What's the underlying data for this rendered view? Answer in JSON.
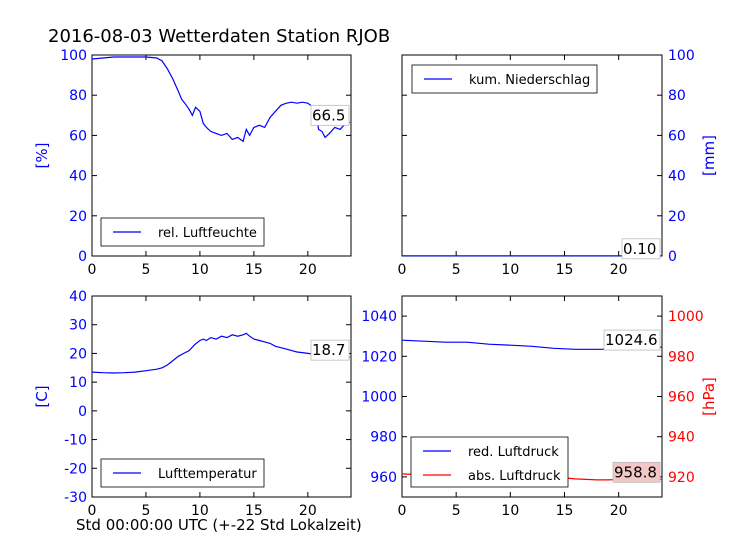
{
  "title": "2016-08-03 Wetterdaten Station RJOB",
  "xlabel": "Std 00:00:00 UTC (+-22 Std Lokalzeit)",
  "colors": {
    "blue": "#0000ff",
    "red": "#ff0000"
  },
  "chart_data": [
    {
      "id": "humidity",
      "type": "line",
      "ylabel": "[%]",
      "xlim": [
        0,
        24
      ],
      "ylim": [
        0,
        100
      ],
      "xticks": [
        0,
        5,
        10,
        15,
        20
      ],
      "yticks": [
        0,
        20,
        40,
        60,
        80,
        100
      ],
      "series": [
        {
          "name": "rel. Luftfeuchte",
          "color": "#0000ff",
          "x": [
            0,
            1,
            2,
            3,
            4,
            5,
            6,
            6.5,
            7,
            7.5,
            8,
            8.3,
            8.6,
            9,
            9.3,
            9.6,
            10,
            10.3,
            10.6,
            11,
            11.5,
            12,
            12.5,
            13,
            13.5,
            14,
            14.3,
            14.6,
            15,
            15.5,
            16,
            16.5,
            17,
            17.5,
            18,
            18.5,
            19,
            19.5,
            20,
            20.5,
            20.8,
            21,
            21.3,
            21.6,
            22,
            22.5,
            23,
            23.5,
            23.9
          ],
          "y": [
            98,
            98.5,
            99,
            99,
            99,
            99,
            98.5,
            97,
            93,
            88,
            82,
            78,
            76,
            73,
            70,
            74,
            72,
            66,
            64,
            62,
            61,
            60,
            61,
            58,
            59,
            57,
            63,
            60,
            64,
            65,
            64,
            69,
            72,
            75,
            76,
            76.5,
            76,
            76.5,
            76,
            74,
            70,
            63,
            62,
            59,
            61,
            64,
            63,
            66,
            66.5
          ]
        }
      ],
      "end_label": "66.5",
      "legend_loc": "lower-left",
      "legend": [
        "rel. Luftfeuchte"
      ]
    },
    {
      "id": "precip",
      "type": "line",
      "ylabel": "[mm]",
      "xlim": [
        0,
        24
      ],
      "ylim": [
        0,
        100
      ],
      "xticks": [
        0,
        5,
        10,
        15,
        20
      ],
      "yticks": [
        0,
        20,
        40,
        60,
        80,
        100
      ],
      "series": [
        {
          "name": "kum. Niederschlag",
          "color": "#0000ff",
          "x": [
            0,
            24
          ],
          "y": [
            0.1,
            0.1
          ]
        }
      ],
      "end_label": "0.10",
      "legend_loc": "top-left",
      "legend": [
        "kum. Niederschlag"
      ]
    },
    {
      "id": "temperature",
      "type": "line",
      "ylabel": "[C]",
      "xlim": [
        0,
        24
      ],
      "ylim": [
        -30,
        40
      ],
      "xticks": [
        0,
        5,
        10,
        15,
        20
      ],
      "yticks": [
        -30,
        -20,
        -10,
        0,
        10,
        20,
        30,
        40
      ],
      "series": [
        {
          "name": "Lufttemperatur",
          "color": "#0000ff",
          "x": [
            0,
            1,
            2,
            3,
            4,
            5,
            6,
            6.5,
            7,
            7.5,
            8,
            8.5,
            9,
            9.5,
            10,
            10.3,
            10.6,
            11,
            11.5,
            12,
            12.5,
            13,
            13.5,
            14,
            14.3,
            14.6,
            15,
            15.5,
            16,
            16.5,
            17,
            17.5,
            18,
            18.5,
            19,
            19.5,
            20,
            21,
            22,
            23,
            23.9
          ],
          "y": [
            13.5,
            13.3,
            13.2,
            13.3,
            13.5,
            14,
            14.5,
            15,
            16,
            17.5,
            19,
            20,
            21,
            23,
            24.5,
            25,
            24.5,
            25.5,
            25,
            26,
            25.5,
            26.5,
            26,
            26.5,
            27,
            26,
            25,
            24.5,
            24,
            23.5,
            22.5,
            22,
            21.5,
            21,
            20.5,
            20.3,
            20,
            19.5,
            19,
            18.8,
            18.7
          ]
        }
      ],
      "end_label": "18.7",
      "legend_loc": "lower-left",
      "legend": [
        "Lufttemperatur"
      ]
    },
    {
      "id": "pressure",
      "type": "line",
      "ylabel": "[hPa]",
      "xlim": [
        0,
        24
      ],
      "ylim": [
        950,
        1050
      ],
      "ylim_right": [
        910,
        1010
      ],
      "xticks": [
        0,
        5,
        10,
        15,
        20
      ],
      "yticks": [
        960,
        980,
        1000,
        1020,
        1040
      ],
      "yticks_right": [
        920,
        940,
        960,
        980,
        1000
      ],
      "series": [
        {
          "name": "red. Luftdruck",
          "color": "#0000ff",
          "x": [
            0,
            2,
            4,
            6,
            8,
            10,
            12,
            14,
            16,
            18,
            19,
            20,
            21,
            22,
            23,
            24
          ],
          "y": [
            1028,
            1027.5,
            1027,
            1027,
            1026,
            1025.5,
            1025,
            1024,
            1023.5,
            1023.5,
            1023.5,
            1023.8,
            1024,
            1024.3,
            1024.5,
            1024.6
          ]
        },
        {
          "name": "abs. Luftdruck",
          "color": "#ff0000",
          "x": [
            0,
            2,
            4,
            6,
            8,
            10,
            12,
            14,
            16,
            18,
            19,
            20,
            21,
            22,
            23,
            24
          ],
          "y": [
            961.5,
            961,
            960.5,
            960.5,
            960,
            960,
            960.5,
            960,
            959,
            958.5,
            958.5,
            958.7,
            958.8,
            958.8,
            958.8,
            958.8
          ]
        }
      ],
      "end_labels": [
        "1024.6",
        "958.8"
      ],
      "legend_loc": "lower-left",
      "legend": [
        "red. Luftdruck",
        "abs. Luftdruck"
      ]
    }
  ]
}
